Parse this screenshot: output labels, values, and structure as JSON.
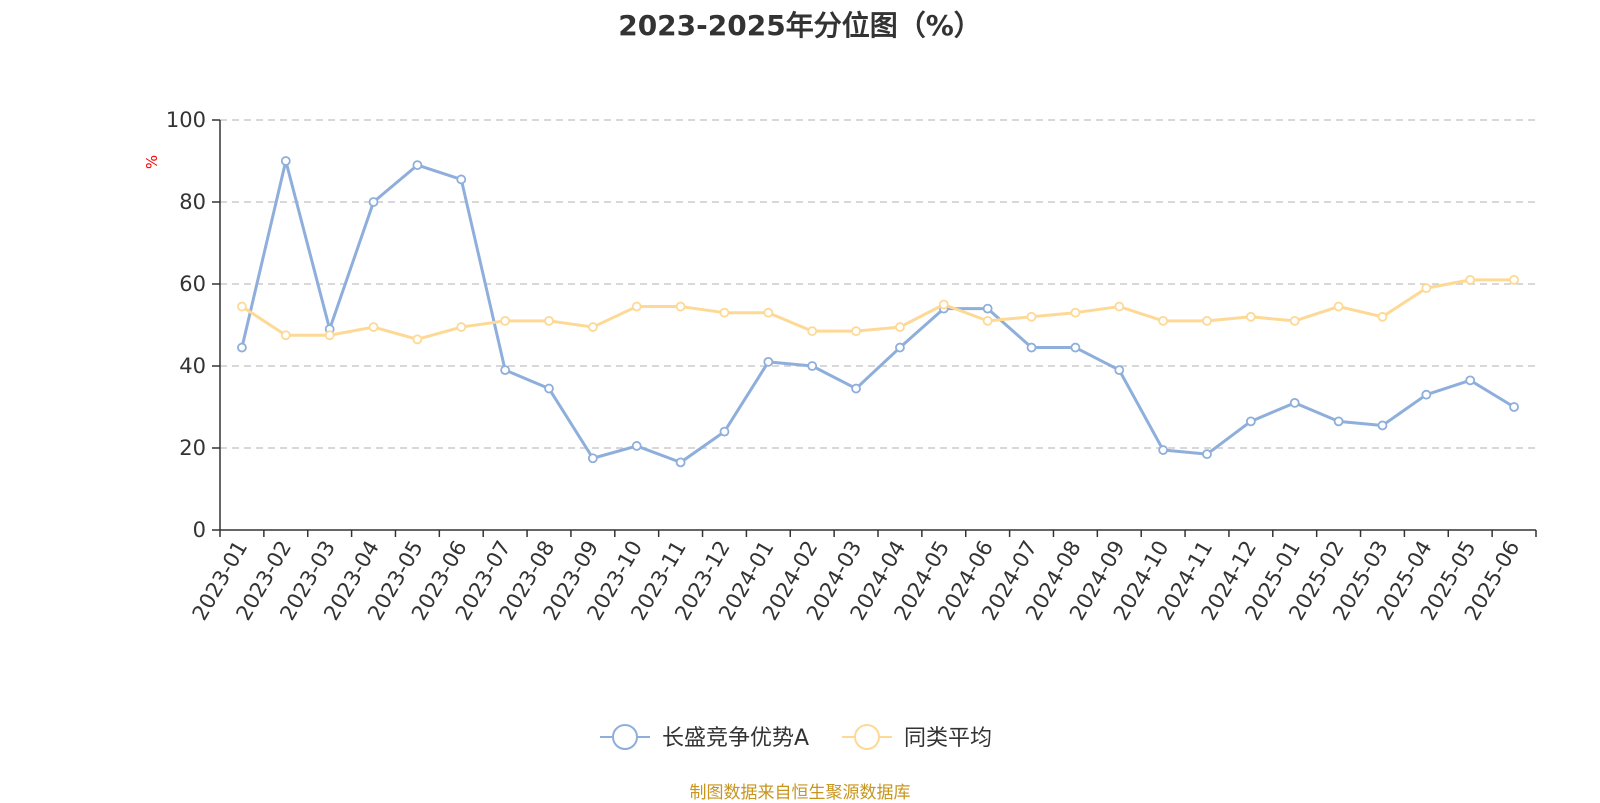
{
  "title": "2023-2025年分位图（%）",
  "source_note": "制图数据来自恒生聚源数据库",
  "chart_data": {
    "type": "line",
    "title": "2023-2025年分位图（%）",
    "ylabel": "%",
    "xlabel": "",
    "ylim": [
      0,
      100
    ],
    "yticks": [
      0,
      20,
      40,
      60,
      80,
      100
    ],
    "grid": true,
    "legend_position": "bottom",
    "categories": [
      "2023-01",
      "2023-02",
      "2023-03",
      "2023-04",
      "2023-05",
      "2023-06",
      "2023-07",
      "2023-08",
      "2023-09",
      "2023-10",
      "2023-11",
      "2023-12",
      "2024-01",
      "2024-02",
      "2024-03",
      "2024-04",
      "2024-05",
      "2024-06",
      "2024-07",
      "2024-08",
      "2024-09",
      "2024-10",
      "2024-11",
      "2024-12",
      "2025-01",
      "2025-02",
      "2025-03",
      "2025-04",
      "2025-05",
      "2025-06"
    ],
    "series": [
      {
        "name": "长盛竞争优势A",
        "color": "#8eaedb",
        "values": [
          44.5,
          90,
          49,
          80,
          89,
          85.5,
          39,
          34.5,
          17.5,
          20.5,
          16.5,
          24,
          41,
          40,
          34.5,
          44.5,
          54,
          54,
          44.5,
          44.5,
          39,
          19.5,
          18.5,
          26.5,
          31,
          26.5,
          25.5,
          33,
          36.5,
          30
        ]
      },
      {
        "name": "同类平均",
        "color": "#fdd995",
        "values": [
          54.5,
          47.5,
          47.5,
          49.5,
          46.5,
          49.5,
          51,
          51,
          49.5,
          54.5,
          54.5,
          53,
          53,
          48.5,
          48.5,
          49.5,
          55,
          51,
          52,
          53,
          54.5,
          51,
          51,
          52,
          51,
          54.5,
          52,
          59,
          61,
          61
        ]
      }
    ]
  }
}
